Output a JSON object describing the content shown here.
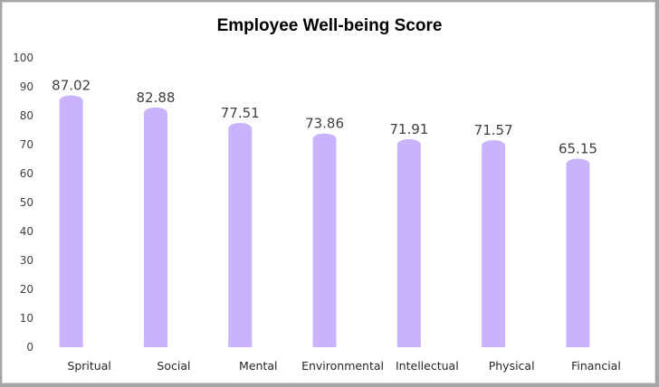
{
  "chart_data": {
    "type": "bar",
    "title": "Employee Well-being Score",
    "xlabel": "",
    "ylabel": "",
    "categories": [
      "Spritual",
      "Social",
      "Mental",
      "Environmental",
      "Intellectual",
      "Physical",
      "Financial"
    ],
    "values": [
      87.02,
      82.88,
      77.51,
      73.86,
      71.91,
      71.57,
      65.15
    ],
    "data_labels": [
      "87.02",
      "82.88",
      "77.51",
      "73.86",
      "71.91",
      "71.57",
      "65.15"
    ],
    "yticks": [
      "0",
      "10",
      "20",
      "30",
      "40",
      "50",
      "60",
      "70",
      "80",
      "90",
      "100"
    ],
    "ylim": [
      0,
      100
    ],
    "grid": false,
    "legend": "none",
    "bar_color": "#c9b3fb"
  }
}
